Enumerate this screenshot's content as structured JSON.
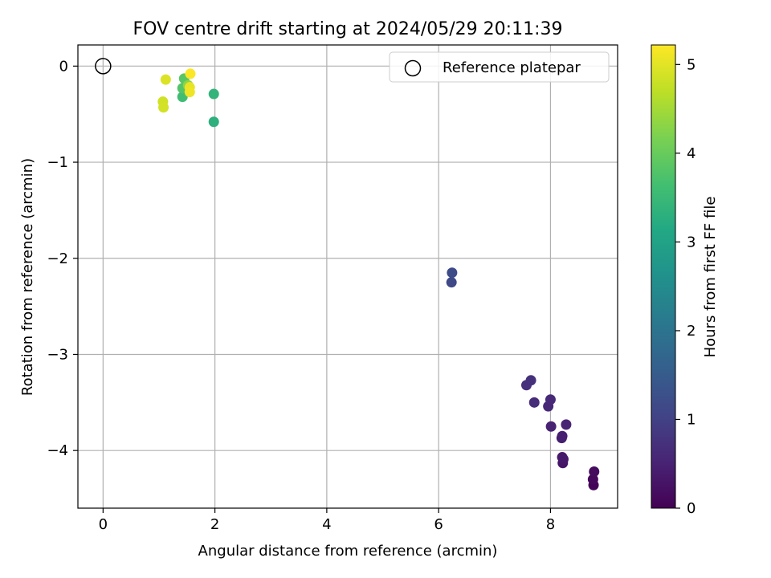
{
  "chart_data": {
    "type": "scatter",
    "title": "FOV centre drift starting at 2024/05/29 20:11:39",
    "xlabel": "Angular distance from reference (arcmin)",
    "ylabel": "Rotation from reference (arcmin)",
    "xlim": [
      -0.45,
      9.2
    ],
    "ylim": [
      -4.6,
      0.22
    ],
    "xticks": [
      0,
      2,
      4,
      6,
      8
    ],
    "yticks": [
      0,
      -1,
      -2,
      -3,
      -4
    ],
    "xtick_labels": [
      "0",
      "2",
      "4",
      "6",
      "8"
    ],
    "ytick_labels": [
      "0",
      "−1",
      "−2",
      "−3",
      "−4"
    ],
    "grid": true,
    "legend": {
      "placement": "top-right",
      "entries": [
        {
          "label": "Reference platepar",
          "marker": "open-circle"
        }
      ]
    },
    "reference_point": {
      "x": 0,
      "y": 0
    },
    "colorbar": {
      "label": "Hours from first FF file",
      "colormap": "viridis",
      "range": [
        0,
        5.22
      ],
      "ticks": [
        0,
        1,
        2,
        3,
        4,
        5
      ],
      "tick_labels": [
        "0",
        "1",
        "2",
        "3",
        "4",
        "5"
      ]
    },
    "points": [
      {
        "x": 8.77,
        "y": -4.36,
        "hours": 0.05
      },
      {
        "x": 8.76,
        "y": -4.3,
        "hours": 0.1
      },
      {
        "x": 8.78,
        "y": -4.22,
        "hours": 0.15
      },
      {
        "x": 8.22,
        "y": -4.13,
        "hours": 0.3
      },
      {
        "x": 8.23,
        "y": -4.09,
        "hours": 0.33
      },
      {
        "x": 8.21,
        "y": -4.07,
        "hours": 0.36
      },
      {
        "x": 8.2,
        "y": -3.87,
        "hours": 0.42
      },
      {
        "x": 8.21,
        "y": -3.85,
        "hours": 0.44
      },
      {
        "x": 8.01,
        "y": -3.75,
        "hours": 0.5
      },
      {
        "x": 8.28,
        "y": -3.73,
        "hours": 0.52
      },
      {
        "x": 7.96,
        "y": -3.54,
        "hours": 0.58
      },
      {
        "x": 8.0,
        "y": -3.47,
        "hours": 0.6
      },
      {
        "x": 7.71,
        "y": -3.5,
        "hours": 0.65
      },
      {
        "x": 7.57,
        "y": -3.32,
        "hours": 0.7
      },
      {
        "x": 7.65,
        "y": -3.27,
        "hours": 0.72
      },
      {
        "x": 6.23,
        "y": -2.25,
        "hours": 1.15
      },
      {
        "x": 6.24,
        "y": -2.15,
        "hours": 1.18
      },
      {
        "x": 1.98,
        "y": -0.58,
        "hours": 3.3
      },
      {
        "x": 1.98,
        "y": -0.29,
        "hours": 3.4
      },
      {
        "x": 1.42,
        "y": -0.32,
        "hours": 3.6
      },
      {
        "x": 1.42,
        "y": -0.23,
        "hours": 3.8
      },
      {
        "x": 1.45,
        "y": -0.13,
        "hours": 3.85
      },
      {
        "x": 1.52,
        "y": -0.2,
        "hours": 4.3
      },
      {
        "x": 1.07,
        "y": -0.37,
        "hours": 4.85
      },
      {
        "x": 1.08,
        "y": -0.43,
        "hours": 4.88
      },
      {
        "x": 1.12,
        "y": -0.14,
        "hours": 4.95
      },
      {
        "x": 1.55,
        "y": -0.22,
        "hours": 5.05
      },
      {
        "x": 1.55,
        "y": -0.27,
        "hours": 5.1
      },
      {
        "x": 1.56,
        "y": -0.08,
        "hours": 5.2
      }
    ]
  }
}
